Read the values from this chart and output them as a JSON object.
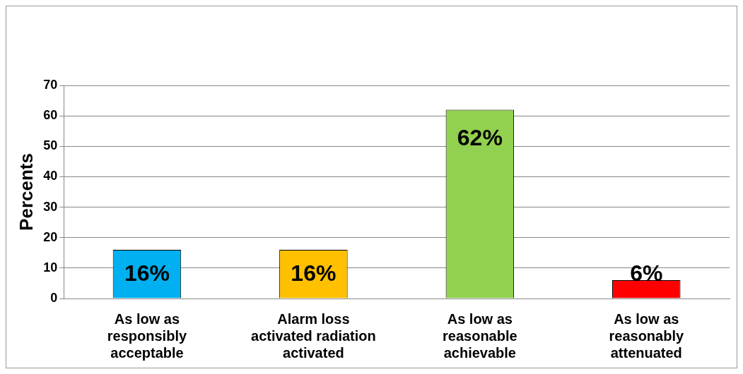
{
  "chart_data": {
    "type": "bar",
    "ylabel": "Percents",
    "categories": [
      "As low as responsibly acceptable",
      "Alarm loss activated radiation activated",
      "As low as reasonable achievable",
      "As low as reasonably attenuated"
    ],
    "values": [
      16,
      16,
      62,
      6
    ],
    "colors": [
      "#00b0f0",
      "#ffc000",
      "#92d050",
      "#ff0000"
    ],
    "value_labels": [
      "16%",
      "16%",
      "62%",
      "6%"
    ],
    "ylim": [
      0,
      70
    ],
    "yticks": [
      0,
      10,
      20,
      30,
      40,
      50,
      60,
      70
    ],
    "grid": "y",
    "legend": false
  }
}
